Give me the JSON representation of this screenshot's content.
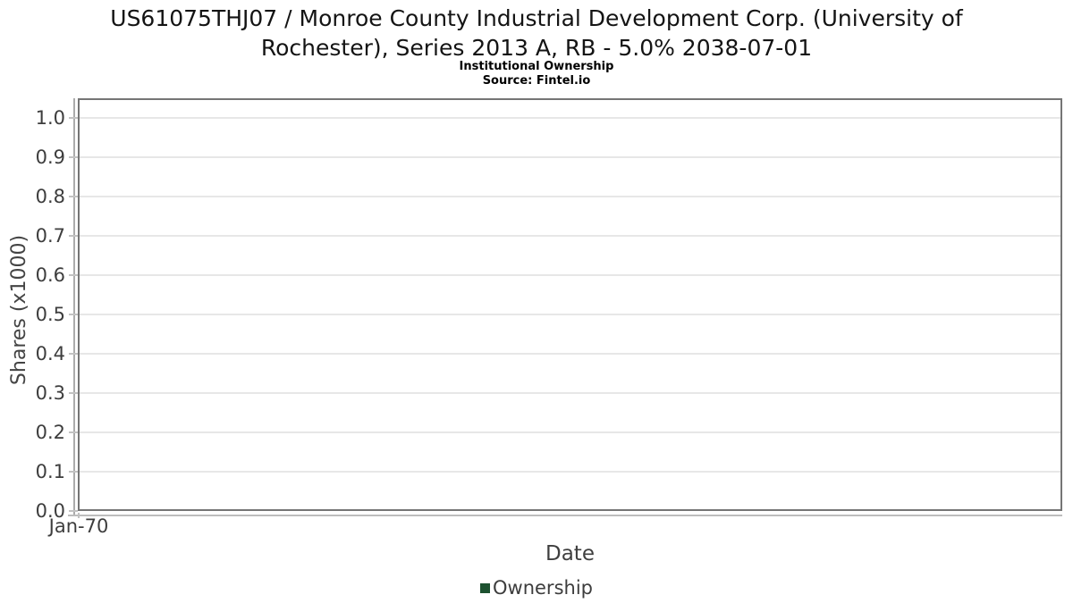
{
  "title_lines": [
    "US61075THJ07 / Monroe County Industrial Development Corp. (University of",
    "Rochester), Series 2013 A, RB - 5.0% 2038-07-01"
  ],
  "chart_data": {
    "type": "line",
    "title": "US61075THJ07 / Monroe County Industrial Development Corp. (University of Rochester), Series 2013 A, RB - 5.0% 2038-07-01",
    "subtitle": "Institutional Ownership",
    "source": "Source: Fintel.io",
    "xlabel": "Date",
    "ylabel": "Shares (x1000)",
    "x_ticks": [
      "Jan-70"
    ],
    "y_ticks": [
      "1.0",
      "0.9",
      "0.8",
      "0.7",
      "0.6",
      "0.5",
      "0.4",
      "0.3",
      "0.2",
      "0.1",
      "0.0"
    ],
    "ylim": [
      0.0,
      1.0
    ],
    "grid": "horizontal gridlines on, plot fully framed",
    "legend_position": "bottom-center",
    "series": [
      {
        "name": "Ownership",
        "color": "#1d5130",
        "x": [],
        "values": []
      }
    ]
  },
  "colors": {
    "background": "#ffffff",
    "title_text": "#141414",
    "subtitle_text": "#000000",
    "axis_text": "#3d3d3d",
    "plot_border": "#757575",
    "gridline": "#e7e7e7",
    "axis_line": "#ababab",
    "tick": "#c2c2c2",
    "legend_marker": "#1d5130"
  }
}
